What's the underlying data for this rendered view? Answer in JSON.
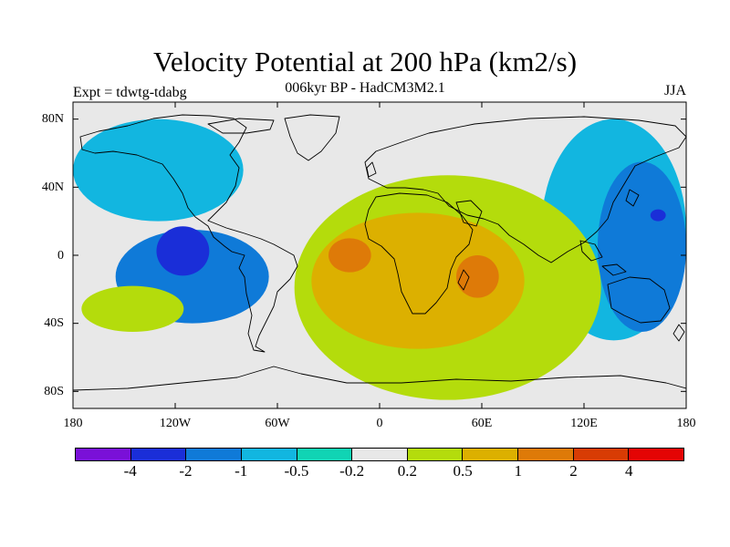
{
  "title": "Velocity Potential at 200 hPa (km2/s)",
  "subtitle": "006kyr BP - HadCM3M2.1",
  "experiment": "Expt = tdwtg-tdabg",
  "season": "JJA",
  "chart_data": {
    "type": "heatmap",
    "projection": "cylindrical-equidistant",
    "x_tick_labels": [
      "180",
      "120W",
      "60W",
      "0",
      "60E",
      "120E",
      "180"
    ],
    "y_tick_labels": [
      "80N",
      "40N",
      "0",
      "40S",
      "80S"
    ],
    "xlim": [
      -180,
      180
    ],
    "ylim": [
      -90,
      90
    ],
    "colorbar": {
      "labels": [
        "-4",
        "-2",
        "-1",
        "-0.5",
        "-0.2",
        "0.2",
        "0.5",
        "1",
        "2",
        "4"
      ],
      "colors": [
        "#7a10d8",
        "#1a2ed8",
        "#0f7ad8",
        "#12b6e0",
        "#10d4b4",
        "#e8e8e8",
        "#b4dc0c",
        "#dcb000",
        "#de7a08",
        "#d83c04",
        "#e40404"
      ]
    },
    "regions": [
      {
        "level": "-0.5",
        "shape": "north-pacific-band",
        "lon_range": [
          -180,
          -80
        ],
        "lat_range": [
          20,
          80
        ]
      },
      {
        "level": "-1",
        "shape": "east-pacific-core",
        "lon_range": [
          -155,
          -65
        ],
        "lat_range": [
          -40,
          15
        ]
      },
      {
        "level": "-2",
        "shape": "east-pacific-center",
        "lon_range": [
          -131,
          -100
        ],
        "lat_range": [
          -12,
          17
        ]
      },
      {
        "level": "-0.5",
        "shape": "west-pacific-band",
        "lon_range": [
          95,
          180
        ],
        "lat_range": [
          -50,
          80
        ]
      },
      {
        "level": "-1",
        "shape": "west-pacific-core",
        "lon_range": [
          128,
          180
        ],
        "lat_range": [
          -45,
          55
        ]
      },
      {
        "level": "-2",
        "shape": "west-pacific-center",
        "lon_range": [
          159,
          168
        ],
        "lat_range": [
          20,
          27
        ]
      },
      {
        "level": "0.2",
        "shape": "south-pacific-blobs",
        "lon_range": [
          -175,
          -115
        ],
        "lat_range": [
          -45,
          -18
        ]
      },
      {
        "level": "0.2",
        "shape": "africa-atlantic-indian",
        "lon_range": [
          -50,
          130
        ],
        "lat_range": [
          -85,
          47
        ]
      },
      {
        "level": "0.5",
        "shape": "africa-core",
        "lon_range": [
          -40,
          85
        ],
        "lat_range": [
          -55,
          25
        ]
      },
      {
        "level": "1",
        "shape": "west-africa-max",
        "lon_range": [
          -30,
          -5
        ],
        "lat_range": [
          -10,
          10
        ]
      },
      {
        "level": "1",
        "shape": "madagascar-max",
        "lon_range": [
          45,
          70
        ],
        "lat_range": [
          -25,
          0
        ]
      }
    ]
  }
}
